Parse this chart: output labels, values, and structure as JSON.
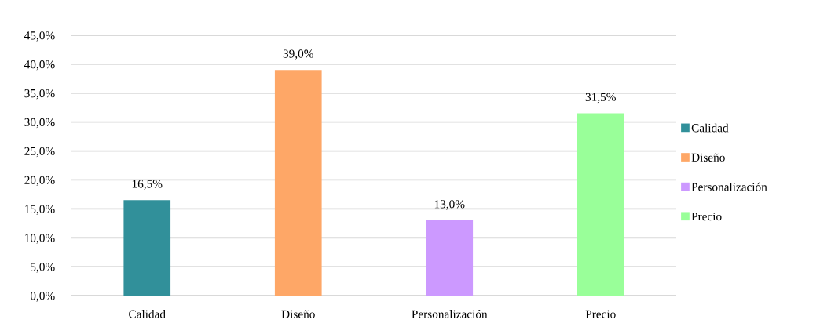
{
  "chart_data": {
    "type": "bar",
    "categories": [
      "Calidad",
      "Diseño",
      "Personalización",
      "Precio"
    ],
    "series": [
      {
        "name": "Calidad",
        "color": "#31909a",
        "values": [
          16.5,
          null,
          null,
          null
        ],
        "value_labels": [
          "16,5%",
          null,
          null,
          null
        ]
      },
      {
        "name": "Diseño",
        "color": "#fea767",
        "values": [
          null,
          39.0,
          null,
          null
        ],
        "value_labels": [
          null,
          "39,0%",
          null,
          null
        ]
      },
      {
        "name": "Personalización",
        "color": "#cc99ff",
        "values": [
          null,
          null,
          13.0,
          null
        ],
        "value_labels": [
          null,
          null,
          "13,0%",
          null
        ]
      },
      {
        "name": "Precio",
        "color": "#99ff99",
        "values": [
          null,
          null,
          null,
          31.5
        ],
        "value_labels": [
          null,
          null,
          null,
          "31,5%"
        ]
      }
    ],
    "ylim": [
      0,
      45
    ],
    "yticks": [
      {
        "value": 0,
        "label": "0,0%"
      },
      {
        "value": 5,
        "label": "5,0%"
      },
      {
        "value": 10,
        "label": "10,0%"
      },
      {
        "value": 15,
        "label": "15,0%"
      },
      {
        "value": 20,
        "label": "20,0%"
      },
      {
        "value": 25,
        "label": "25,0%"
      },
      {
        "value": 30,
        "label": "30,0%"
      },
      {
        "value": 35,
        "label": "35,0%"
      },
      {
        "value": 40,
        "label": "40,0%"
      },
      {
        "value": 45,
        "label": "45,0%"
      }
    ],
    "grid": "y",
    "legend": "right"
  }
}
